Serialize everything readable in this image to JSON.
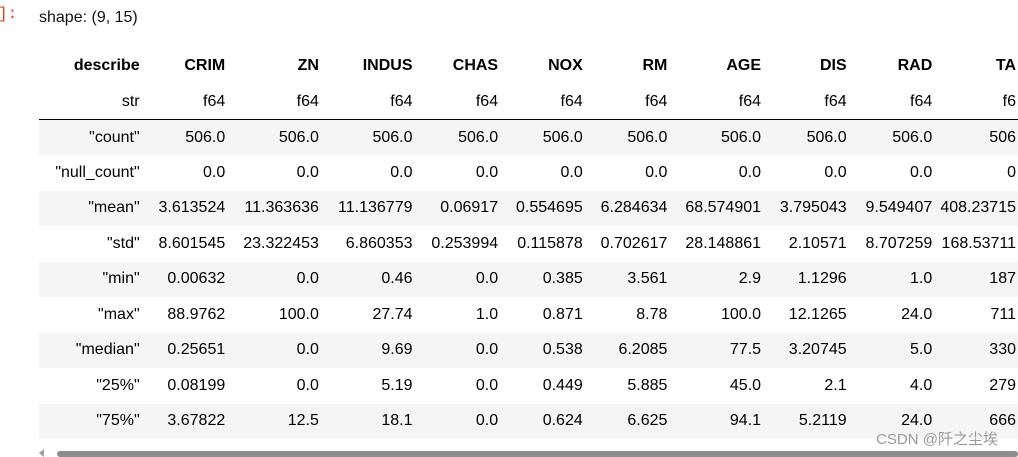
{
  "prompt": "]:",
  "shape_text": "shape: (9, 15)",
  "columns": [
    {
      "name": "describe",
      "dtype": "str",
      "width": 103
    },
    {
      "name": "CRIM",
      "dtype": "f64",
      "width": 86
    },
    {
      "name": "ZN",
      "dtype": "f64",
      "width": 94
    },
    {
      "name": "INDUS",
      "dtype": "f64",
      "width": 94
    },
    {
      "name": "CHAS",
      "dtype": "f64",
      "width": 86
    },
    {
      "name": "NOX",
      "dtype": "f64",
      "width": 85
    },
    {
      "name": "RM",
      "dtype": "f64",
      "width": 85
    },
    {
      "name": "AGE",
      "dtype": "f64",
      "width": 94
    },
    {
      "name": "DIS",
      "dtype": "f64",
      "width": 86
    },
    {
      "name": "RAD",
      "dtype": "f64",
      "width": 86
    },
    {
      "name": "TA",
      "dtype": "f6",
      "width": 80
    }
  ],
  "rows": [
    [
      "\"count\"",
      "506.0",
      "506.0",
      "506.0",
      "506.0",
      "506.0",
      "506.0",
      "506.0",
      "506.0",
      "506.0",
      "506"
    ],
    [
      "\"null_count\"",
      "0.0",
      "0.0",
      "0.0",
      "0.0",
      "0.0",
      "0.0",
      "0.0",
      "0.0",
      "0.0",
      "0"
    ],
    [
      "\"mean\"",
      "3.613524",
      "11.363636",
      "11.136779",
      "0.06917",
      "0.554695",
      "6.284634",
      "68.574901",
      "3.795043",
      "9.549407",
      "408.23715"
    ],
    [
      "\"std\"",
      "8.601545",
      "23.322453",
      "6.860353",
      "0.253994",
      "0.115878",
      "0.702617",
      "28.148861",
      "2.10571",
      "8.707259",
      "168.53711"
    ],
    [
      "\"min\"",
      "0.00632",
      "0.0",
      "0.46",
      "0.0",
      "0.385",
      "3.561",
      "2.9",
      "1.1296",
      "1.0",
      "187"
    ],
    [
      "\"max\"",
      "88.9762",
      "100.0",
      "27.74",
      "1.0",
      "0.871",
      "8.78",
      "100.0",
      "12.1265",
      "24.0",
      "711"
    ],
    [
      "\"median\"",
      "0.25651",
      "0.0",
      "9.69",
      "0.0",
      "0.538",
      "6.2085",
      "77.5",
      "3.20745",
      "5.0",
      "330"
    ],
    [
      "\"25%\"",
      "0.08199",
      "0.0",
      "5.19",
      "0.0",
      "0.449",
      "5.885",
      "45.0",
      "2.1",
      "4.0",
      "279"
    ],
    [
      "\"75%\"",
      "3.67822",
      "12.5",
      "18.1",
      "0.0",
      "0.624",
      "6.625",
      "94.1",
      "5.2119",
      "24.0",
      "666"
    ]
  ],
  "watermark": "CSDN @阡之尘埃"
}
